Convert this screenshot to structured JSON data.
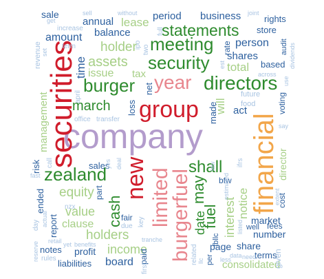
{
  "colors": {
    "purple": "#b39ccc",
    "red": "#d01c2b",
    "pink": "#e8868e",
    "green": "#2e8b2e",
    "lightgreen": "#a6cf86",
    "blue": "#2c5f9e",
    "lightblue": "#a9c4e2",
    "orange": "#f2a64a"
  },
  "words": [
    {
      "text": "company",
      "color": "purple"
    },
    {
      "text": "securities",
      "color": "red"
    },
    {
      "text": "financial",
      "color": "orange"
    },
    {
      "text": "group",
      "color": "red"
    },
    {
      "text": "new",
      "color": "red"
    },
    {
      "text": "limited",
      "color": "pink"
    },
    {
      "text": "burgerfuel",
      "color": "pink"
    },
    {
      "text": "directors",
      "color": "green"
    },
    {
      "text": "year",
      "color": "pink"
    },
    {
      "text": "meeting",
      "color": "green"
    },
    {
      "text": "statements",
      "color": "green"
    },
    {
      "text": "security",
      "color": "green"
    },
    {
      "text": "burger",
      "color": "green"
    },
    {
      "text": "zealand",
      "color": "green"
    },
    {
      "text": "shall",
      "color": "green"
    },
    {
      "text": "march",
      "color": "green"
    },
    {
      "text": "cash",
      "color": "green"
    },
    {
      "text": "may",
      "color": "green"
    },
    {
      "text": "fuel",
      "color": "green"
    },
    {
      "text": "assets",
      "color": "lightgreen"
    },
    {
      "text": "holder",
      "color": "lightgreen"
    },
    {
      "text": "equity",
      "color": "lightgreen"
    },
    {
      "text": "value",
      "color": "lightgreen"
    },
    {
      "text": "clause",
      "color": "lightgreen"
    },
    {
      "text": "holders",
      "color": "lightgreen"
    },
    {
      "text": "income",
      "color": "lightgreen"
    },
    {
      "text": "interest",
      "color": "lightgreen"
    },
    {
      "text": "notice",
      "color": "lightgreen"
    },
    {
      "text": "total",
      "color": "lightgreen"
    },
    {
      "text": "consolidated",
      "color": "lightgreen"
    },
    {
      "text": "management",
      "color": "lightgreen"
    },
    {
      "text": "will",
      "color": "lightgreen"
    },
    {
      "text": "issue",
      "color": "lightgreen"
    },
    {
      "text": "lease",
      "color": "lightgreen"
    },
    {
      "text": "director",
      "color": "lightgreen"
    },
    {
      "text": "date",
      "color": "green"
    },
    {
      "text": "tax",
      "color": "lightgreen"
    },
    {
      "text": "time",
      "color": "blue"
    },
    {
      "text": "balance",
      "color": "blue"
    },
    {
      "text": "person",
      "color": "blue"
    },
    {
      "text": "shares",
      "color": "blue"
    },
    {
      "text": "business",
      "color": "blue"
    },
    {
      "text": "period",
      "color": "blue"
    },
    {
      "text": "annual",
      "color": "blue"
    },
    {
      "text": "amount",
      "color": "blue"
    },
    {
      "text": "store",
      "color": "blue"
    },
    {
      "text": "rights",
      "color": "blue"
    },
    {
      "text": "sale",
      "color": "blue"
    },
    {
      "text": "act",
      "color": "blue"
    },
    {
      "text": "loss",
      "color": "blue"
    },
    {
      "text": "net",
      "color": "blue"
    },
    {
      "text": "made",
      "color": "blue"
    },
    {
      "text": "based",
      "color": "blue"
    },
    {
      "text": "rate",
      "color": "blue"
    },
    {
      "text": "audit",
      "color": "blue"
    },
    {
      "text": "market",
      "color": "blue"
    },
    {
      "text": "number",
      "color": "blue"
    },
    {
      "text": "fees",
      "color": "blue"
    },
    {
      "text": "share",
      "color": "blue"
    },
    {
      "text": "page",
      "color": "blue"
    },
    {
      "text": "terms",
      "color": "blue"
    },
    {
      "text": "board",
      "color": "blue"
    },
    {
      "text": "profit",
      "color": "blue"
    },
    {
      "text": "liabilities",
      "color": "blue"
    },
    {
      "text": "notes",
      "color": "blue"
    },
    {
      "text": "report",
      "color": "blue"
    },
    {
      "text": "ended",
      "color": "blue"
    },
    {
      "text": "risk",
      "color": "blue"
    },
    {
      "text": "sales",
      "color": "blue"
    },
    {
      "text": "part",
      "color": "blue"
    },
    {
      "text": "fair",
      "color": "blue"
    },
    {
      "text": "cost",
      "color": "blue"
    },
    {
      "text": "voting",
      "color": "blue"
    },
    {
      "text": "bfw",
      "color": "blue"
    },
    {
      "text": "paid",
      "color": "blue"
    },
    {
      "text": "per",
      "color": "blue"
    },
    {
      "text": "well",
      "color": "blue"
    },
    {
      "text": "fbllc",
      "color": "blue"
    },
    {
      "text": "given",
      "color": "lightblue"
    },
    {
      "text": "revenue",
      "color": "lightblue"
    },
    {
      "text": "increase",
      "color": "lightblue"
    },
    {
      "text": "term",
      "color": "lightblue"
    },
    {
      "text": "sell",
      "color": "lightblue"
    },
    {
      "text": "without",
      "color": "lightblue"
    },
    {
      "text": "two",
      "color": "lightblue"
    },
    {
      "text": "full",
      "color": "lightblue"
    },
    {
      "text": "get",
      "color": "lightblue"
    },
    {
      "text": "joint",
      "color": "lightblue"
    },
    {
      "text": "dividends",
      "color": "lightblue"
    },
    {
      "text": "across",
      "color": "lightblue"
    },
    {
      "text": "future",
      "color": "lightblue"
    },
    {
      "text": "food",
      "color": "lightblue"
    },
    {
      "text": "office",
      "color": "lightblue"
    },
    {
      "text": "transfer",
      "color": "lightblue"
    },
    {
      "text": "april",
      "color": "lightblue"
    },
    {
      "text": "say",
      "color": "lightblue"
    },
    {
      "text": "call",
      "color": "lightblue"
    },
    {
      "text": "fast",
      "color": "lightblue"
    },
    {
      "text": "ifrs",
      "color": "lightblue"
    },
    {
      "text": "nzx",
      "color": "lightblue"
    },
    {
      "text": "due",
      "color": "lightblue"
    },
    {
      "text": "key",
      "color": "lightblue"
    },
    {
      "text": "day",
      "color": "lightblue"
    },
    {
      "text": "reserve",
      "color": "lightblue"
    },
    {
      "text": "yet",
      "color": "lightblue"
    },
    {
      "text": "benefits",
      "color": "lightblue"
    },
    {
      "text": "rules",
      "color": "lightblue"
    },
    {
      "text": "retail",
      "color": "lightblue"
    },
    {
      "text": "tranche",
      "color": "lightblue"
    },
    {
      "text": "first",
      "color": "lightblue"
    },
    {
      "text": "related",
      "color": "lightblue"
    },
    {
      "text": "need",
      "color": "lightblue"
    },
    {
      "text": "estimated",
      "color": "lightblue"
    },
    {
      "text": "data",
      "color": "lightblue"
    },
    {
      "text": "extent",
      "color": "lightblue"
    },
    {
      "text": "listed",
      "color": "lightblue"
    },
    {
      "text": "llc",
      "color": "lightblue"
    },
    {
      "text": "less",
      "color": "lightblue"
    },
    {
      "text": "ipo",
      "color": "lightblue"
    },
    {
      "text": "est",
      "color": "lightblue"
    },
    {
      "text": "set",
      "color": "lightblue"
    },
    {
      "text": "use",
      "color": "lightblue"
    },
    {
      "text": "yes",
      "color": "lightblue"
    },
    {
      "text": "deal",
      "color": "lightblue"
    },
    {
      "text": "actual",
      "color": "lightblue"
    },
    {
      "text": "law",
      "color": "lightblue"
    }
  ]
}
